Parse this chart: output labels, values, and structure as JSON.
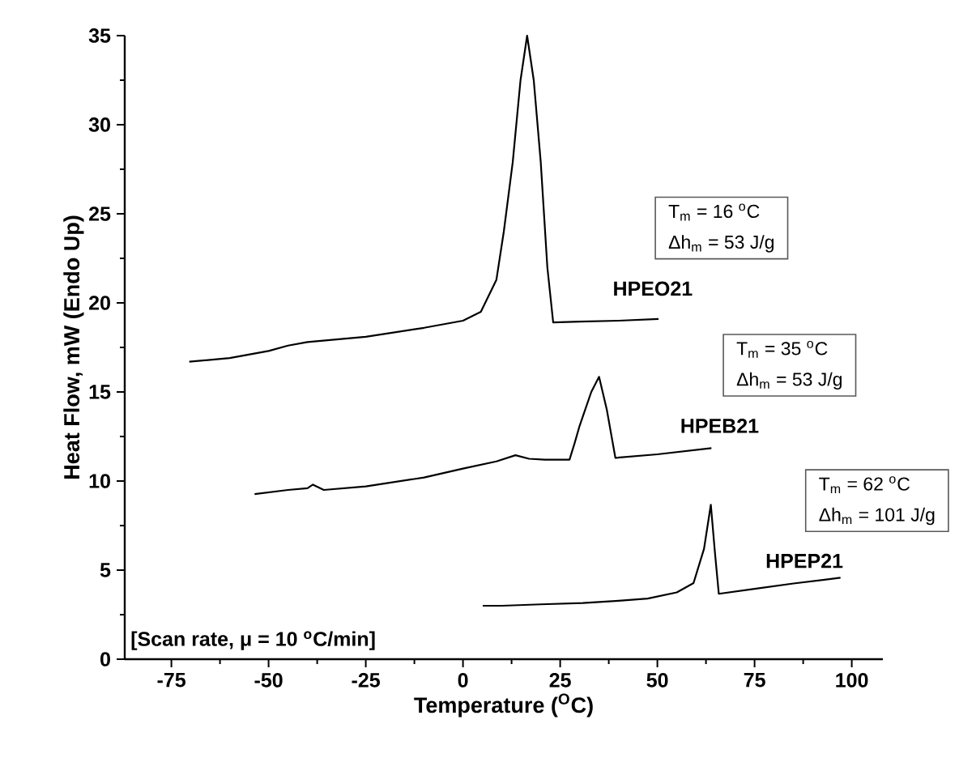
{
  "chart_data": {
    "type": "line",
    "xlabel": "Temperature ($^{O}$C)",
    "ylabel": "Heat Flow, mW (Endo Up)",
    "xlim": [
      -87,
      108
    ],
    "ylim": [
      0,
      35
    ],
    "xticks": [
      -75,
      -50,
      -25,
      0,
      25,
      50,
      75,
      100
    ],
    "yticks": [
      0,
      5,
      10,
      15,
      20,
      25,
      30,
      35
    ],
    "grid": false,
    "marker": "none",
    "line_style": "solid",
    "series": [
      {
        "name": "HPEO21",
        "color": "#000000",
        "x": [
          -70.4,
          -60,
          -50,
          -45,
          -40,
          -25,
          -10,
          0,
          4.6,
          8.6,
          10.5,
          12.8,
          14.8,
          16.5,
          18.2,
          20,
          21.7,
          23.2,
          30,
          40,
          50.3
        ],
        "values": [
          16.7,
          16.9,
          17.3,
          17.6,
          17.8,
          18.1,
          18.6,
          19.0,
          19.5,
          21.3,
          24,
          27.9,
          32.5,
          35,
          32.5,
          27.9,
          22,
          18.9,
          18.95,
          19.0,
          19.1
        ]
      },
      {
        "name": "HPEB21",
        "color": "#000000",
        "x": [
          -53.6,
          -45,
          -40,
          -38.6,
          -35.8,
          -25,
          -10,
          0,
          8.6,
          13.5,
          17,
          21.1,
          27.4,
          28.75,
          30,
          33,
          35,
          37,
          39.2,
          50,
          63.9
        ],
        "values": [
          9.27,
          9.5,
          9.6,
          9.8,
          9.5,
          9.7,
          10.2,
          10.7,
          11.1,
          11.45,
          11.25,
          11.2,
          11.2,
          12.15,
          13.1,
          15,
          15.85,
          14,
          11.3,
          11.5,
          11.85
        ]
      },
      {
        "name": "HPEP21",
        "color": "#000000",
        "x": [
          5.1,
          10,
          20,
          30.8,
          40,
          47.5,
          55,
          59.3,
          62,
          63.75,
          64.8,
          65.8,
          75,
          85,
          97.1
        ],
        "values": [
          3.0,
          3.0,
          3.08,
          3.15,
          3.28,
          3.4,
          3.75,
          4.27,
          6.2,
          8.67,
          6.0,
          3.67,
          3.95,
          4.25,
          4.57
        ]
      }
    ],
    "annotations": [
      "T$_{m}$ = 16 $^{o}$C",
      "Δh$_{m}$ = 53 J/g",
      "T$_{m}$ = 35 $^{o}$C",
      "Δh$_{m}$ = 53 J/g",
      "T$_{m}$ = 62 $^{o}$C",
      "Δh$_{m}$ = 101 J/g",
      "[Scan rate, μ = 10 $^{o}$C/min]"
    ]
  }
}
